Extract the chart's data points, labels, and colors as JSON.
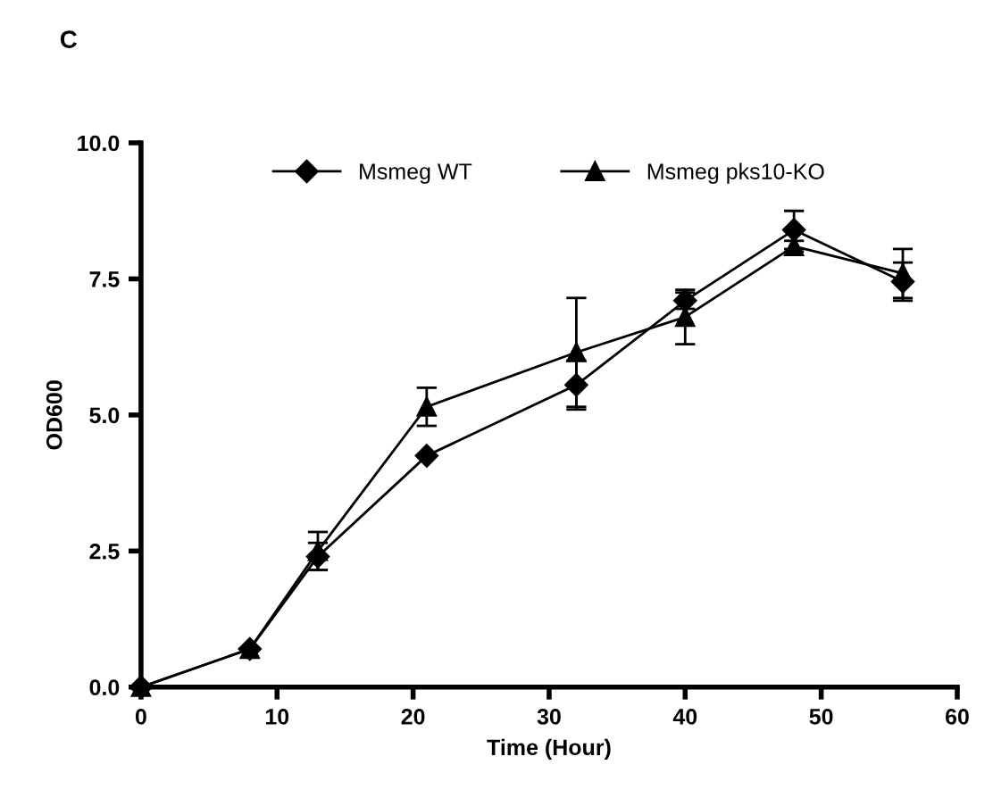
{
  "chart_data": {
    "type": "line",
    "title": "C",
    "xlabel": "Time (Hour)",
    "ylabel": "OD600",
    "x": [
      0,
      8,
      13,
      21,
      32,
      40,
      48,
      56
    ],
    "series": [
      {
        "name": "Msmeg WT",
        "color": "#000000",
        "marker": "diamond",
        "values": [
          0,
          0.7,
          2.4,
          4.25,
          5.55,
          7.1,
          8.4,
          7.45
        ],
        "errors": [
          null,
          null,
          0.25,
          null,
          0.45,
          0.15,
          0.35,
          0.35
        ]
      },
      {
        "name": "Msmeg pks10-KO",
        "color": "#000000",
        "marker": "triangle",
        "values": [
          0,
          0.7,
          2.5,
          5.15,
          6.15,
          6.8,
          8.1,
          7.6
        ],
        "errors": [
          null,
          null,
          0.35,
          0.35,
          1.0,
          0.5,
          0.1,
          0.45
        ]
      }
    ],
    "xlim": [
      0,
      60
    ],
    "xticks": [
      0,
      10,
      20,
      30,
      40,
      50,
      60
    ],
    "ylim": [
      0,
      10
    ],
    "yticks": [
      {
        "value": 0,
        "label": "0.0"
      },
      {
        "value": 2.5,
        "label": "2.5"
      },
      {
        "value": 5,
        "label": "5.0"
      },
      {
        "value": 7.5,
        "label": "7.5"
      },
      {
        "value": 10,
        "label": "10.0"
      }
    ],
    "legend": "top",
    "grid": false,
    "line_style": "solid"
  }
}
